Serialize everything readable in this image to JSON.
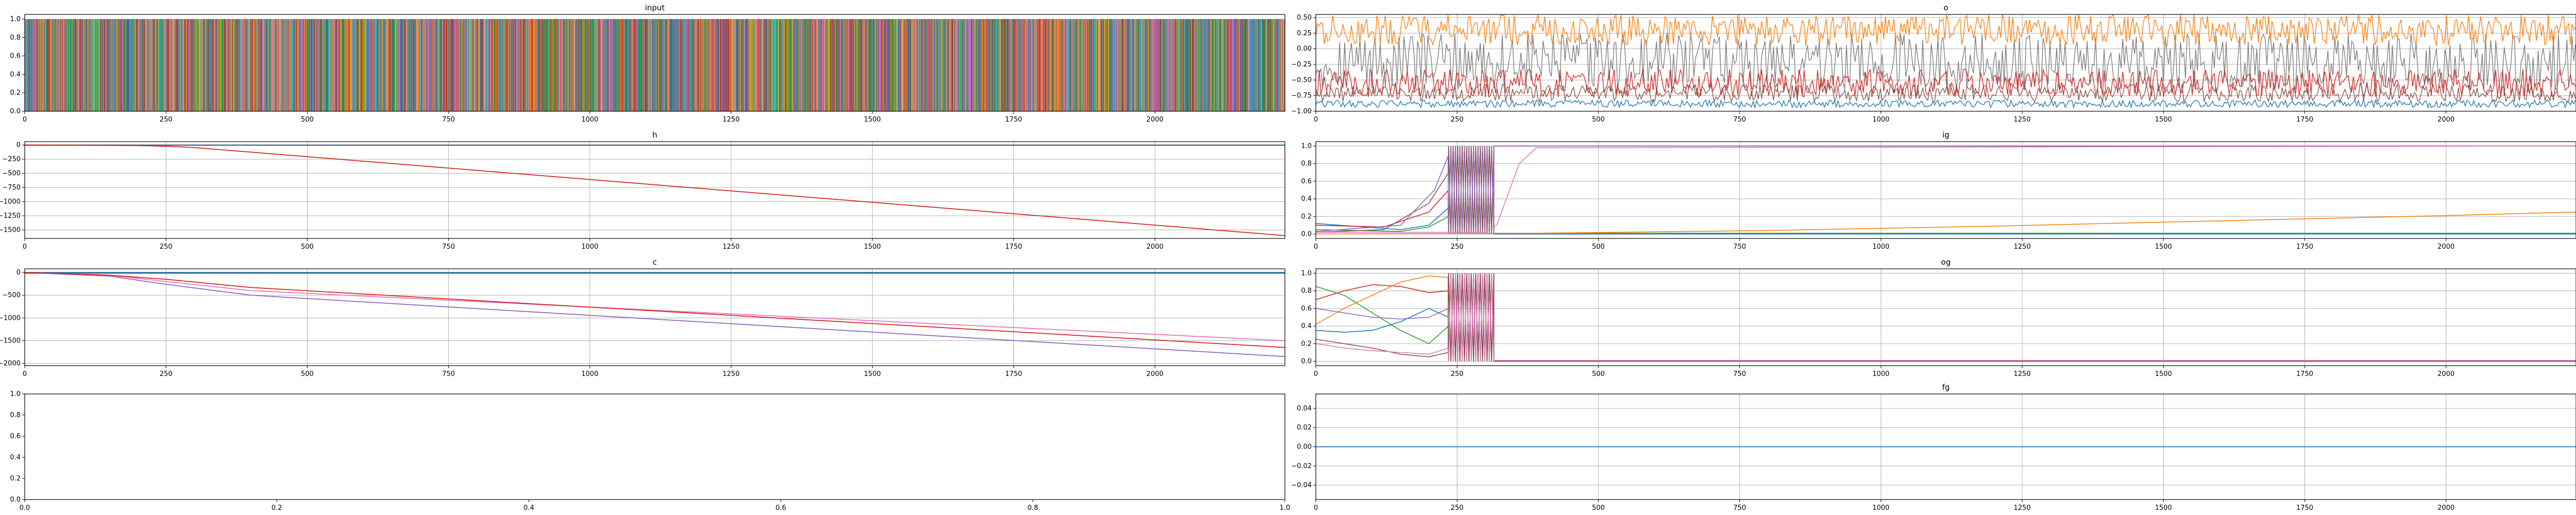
{
  "figure": {
    "background": "#ffffff"
  },
  "chart_data": [
    {
      "id": "input",
      "type": "line",
      "title": "input",
      "xlim": [
        0,
        2230
      ],
      "ylim": [
        0,
        1.05
      ],
      "xticks": [
        0,
        250,
        500,
        750,
        1000,
        1250,
        1500,
        1750,
        2000
      ],
      "yticks": [
        0.0,
        0.2,
        0.4,
        0.6,
        0.8,
        1.0
      ],
      "ytick_labels": [
        "0.0",
        "0.2",
        "0.4",
        "0.6",
        "0.8",
        "1.0"
      ],
      "grid": false,
      "render": "dense_bands",
      "n_points": 2230,
      "value_range": [
        0,
        1
      ],
      "palette": [
        "#1f77b4",
        "#ff7f0e",
        "#2ca02c",
        "#d62728",
        "#9467bd",
        "#8c564b",
        "#e377c2",
        "#7f7f7f",
        "#bcbd22",
        "#17becf"
      ]
    },
    {
      "id": "o",
      "type": "line",
      "title": "o",
      "xlim": [
        0,
        2230
      ],
      "ylim": [
        -1.0,
        0.55
      ],
      "xticks": [
        0,
        250,
        500,
        750,
        1000,
        1250,
        1500,
        1750,
        2000
      ],
      "yticks": [
        -1.0,
        -0.75,
        -0.5,
        -0.25,
        0.0,
        0.25,
        0.5
      ],
      "ytick_labels": [
        "−1.00",
        "−0.75",
        "−0.50",
        "−0.25",
        "0.00",
        "0.25",
        "0.50"
      ],
      "grid": true,
      "render": "noisy",
      "series": [
        {
          "color": "#7f7f7f",
          "center": -0.2,
          "amp": 0.9
        },
        {
          "color": "#ff7f0e",
          "center": 0.3,
          "amp": 0.5
        },
        {
          "color": "#d62728",
          "center": -0.55,
          "amp": 0.45
        },
        {
          "color": "#8c564b",
          "center": -0.7,
          "amp": 0.3
        },
        {
          "color": "#1f77b4",
          "center": -0.88,
          "amp": 0.12
        }
      ]
    },
    {
      "id": "h",
      "type": "line",
      "title": "h",
      "xlim": [
        0,
        2230
      ],
      "ylim": [
        -1650,
        60
      ],
      "xticks": [
        0,
        250,
        500,
        750,
        1000,
        1250,
        1500,
        1750,
        2000
      ],
      "yticks": [
        0,
        -250,
        -500,
        -750,
        -1000,
        -1250,
        -1500
      ],
      "ytick_labels": [
        "0",
        "−250",
        "−500",
        "−750",
        "−1000",
        "−1250",
        "−1500"
      ],
      "grid": true,
      "series": [
        {
          "color": "#7f7f7f",
          "x": [
            0,
            2230
          ],
          "y": [
            0,
            0
          ]
        },
        {
          "color": "#ff7f0e",
          "x": [
            0,
            2230
          ],
          "y": [
            -2,
            -2
          ]
        },
        {
          "color": "#2ca02c",
          "x": [
            0,
            2230
          ],
          "y": [
            -4,
            -4
          ]
        },
        {
          "color": "#8c564b",
          "x": [
            0,
            2230
          ],
          "y": [
            -1,
            -1
          ]
        },
        {
          "color": "#e377c2",
          "x": [
            0,
            2230
          ],
          "y": [
            -6,
            -6
          ]
        },
        {
          "color": "#1f77b4",
          "x": [
            0,
            2230
          ],
          "y": [
            -3,
            -3
          ]
        },
        {
          "color": "#d62728",
          "x": [
            0,
            200,
            260,
            300,
            2230
          ],
          "y": [
            0,
            -10,
            -25,
            -45,
            -1600
          ]
        }
      ]
    },
    {
      "id": "ig",
      "type": "line",
      "title": "ig",
      "xlim": [
        0,
        2230
      ],
      "ylim": [
        -0.05,
        1.05
      ],
      "xticks": [
        0,
        250,
        500,
        750,
        1000,
        1250,
        1500,
        1750,
        2000
      ],
      "yticks": [
        0.0,
        0.2,
        0.4,
        0.6,
        0.8,
        1.0
      ],
      "ytick_labels": [
        "0.0",
        "0.2",
        "0.4",
        "0.6",
        "0.8",
        "1.0"
      ],
      "grid": true,
      "render": "oscillate",
      "osc_range": [
        235,
        315
      ],
      "series": [
        {
          "color": "#1f77b4",
          "x": [
            0,
            150,
            200,
            235
          ],
          "y": [
            0.12,
            0.05,
            0.1,
            0.3
          ],
          "after": 0
        },
        {
          "color": "#2ca02c",
          "x": [
            0,
            150,
            200,
            235
          ],
          "y": [
            0.05,
            0.03,
            0.08,
            0.2
          ],
          "after": 0.01
        },
        {
          "color": "#d62728",
          "x": [
            0,
            120,
            200,
            235
          ],
          "y": [
            0.1,
            0.08,
            0.25,
            0.5
          ],
          "after": 1
        },
        {
          "color": "#8c564b",
          "x": [
            0,
            120,
            200,
            235
          ],
          "y": [
            0.02,
            0.05,
            0.35,
            0.7
          ],
          "after": 1
        },
        {
          "color": "#9467bd",
          "x": [
            0,
            150,
            210,
            235
          ],
          "y": [
            0.03,
            0.1,
            0.5,
            0.9
          ],
          "after": 1
        },
        {
          "color": "#e377c2",
          "x": [
            0,
            300,
            320,
            340,
            360,
            390,
            2230
          ],
          "y": [
            0.02,
            0.02,
            0.1,
            0.45,
            0.8,
            0.98,
            1.0
          ]
        },
        {
          "color": "#ff7f0e",
          "x": [
            0,
            400,
            800,
            1200,
            1600,
            2000,
            2230
          ],
          "y": [
            0.0,
            0.01,
            0.04,
            0.09,
            0.15,
            0.21,
            0.25
          ]
        }
      ]
    },
    {
      "id": "c",
      "type": "line",
      "title": "c",
      "xlim": [
        0,
        2230
      ],
      "ylim": [
        -2050,
        80
      ],
      "xticks": [
        0,
        250,
        500,
        750,
        1000,
        1250,
        1500,
        1750,
        2000
      ],
      "yticks": [
        0,
        -500,
        -1000,
        -1500,
        -2000
      ],
      "ytick_labels": [
        "0",
        "−500",
        "−1000",
        "−1500",
        "−2000"
      ],
      "grid": true,
      "series": [
        {
          "color": "#7f7f7f",
          "x": [
            0,
            2230
          ],
          "y": [
            0,
            0
          ]
        },
        {
          "color": "#ff7f0e",
          "x": [
            0,
            2230
          ],
          "y": [
            -20,
            -20
          ]
        },
        {
          "color": "#2ca02c",
          "x": [
            0,
            2230
          ],
          "y": [
            -5,
            -5
          ]
        },
        {
          "color": "#8c564b",
          "x": [
            0,
            2230
          ],
          "y": [
            -12,
            -12
          ]
        },
        {
          "color": "#1f77b4",
          "x": [
            0,
            2230
          ],
          "y": [
            -2,
            -2
          ]
        },
        {
          "color": "#e377c2",
          "x": [
            0,
            150,
            250,
            400,
            2230
          ],
          "y": [
            0,
            -60,
            -200,
            -400,
            -1500
          ]
        },
        {
          "color": "#9467bd",
          "x": [
            0,
            150,
            250,
            400,
            2230
          ],
          "y": [
            0,
            -80,
            -260,
            -500,
            -1850
          ]
        },
        {
          "color": "#d62728",
          "x": [
            0,
            150,
            250,
            400,
            2230
          ],
          "y": [
            0,
            -60,
            -150,
            -330,
            -1650
          ]
        }
      ]
    },
    {
      "id": "og",
      "type": "line",
      "title": "og",
      "xlim": [
        0,
        2230
      ],
      "ylim": [
        -0.05,
        1.05
      ],
      "xticks": [
        0,
        250,
        500,
        750,
        1000,
        1250,
        1500,
        1750,
        2000
      ],
      "yticks": [
        0.0,
        0.2,
        0.4,
        0.6,
        0.8,
        1.0
      ],
      "ytick_labels": [
        "0.0",
        "0.2",
        "0.4",
        "0.6",
        "0.8",
        "1.0"
      ],
      "grid": true,
      "render": "oscillate",
      "osc_range": [
        235,
        315
      ],
      "series": [
        {
          "color": "#2ca02c",
          "x": [
            0,
            50,
            100,
            150,
            200,
            235
          ],
          "y": [
            0.85,
            0.75,
            0.55,
            0.35,
            0.2,
            0.4
          ],
          "after": 0
        },
        {
          "color": "#d62728",
          "x": [
            0,
            50,
            100,
            150,
            200,
            235
          ],
          "y": [
            0.7,
            0.8,
            0.87,
            0.85,
            0.78,
            0.8
          ],
          "after": 0
        },
        {
          "color": "#ff7f0e",
          "x": [
            0,
            50,
            100,
            150,
            200,
            235
          ],
          "y": [
            0.42,
            0.6,
            0.75,
            0.9,
            0.97,
            0.95
          ],
          "after": 0
        },
        {
          "color": "#1f77b4",
          "x": [
            0,
            50,
            100,
            150,
            200,
            235
          ],
          "y": [
            0.35,
            0.33,
            0.35,
            0.45,
            0.6,
            0.5
          ],
          "after": 0
        },
        {
          "color": "#9467bd",
          "x": [
            0,
            50,
            100,
            150,
            200,
            235
          ],
          "y": [
            0.6,
            0.55,
            0.5,
            0.48,
            0.5,
            0.6
          ],
          "after": 0.01
        },
        {
          "color": "#8c564b",
          "x": [
            0,
            50,
            100,
            150,
            200,
            235
          ],
          "y": [
            0.25,
            0.2,
            0.15,
            0.08,
            0.05,
            0.1
          ],
          "after": 0
        },
        {
          "color": "#e377c2",
          "x": [
            0,
            50,
            100,
            150,
            200,
            235
          ],
          "y": [
            0.2,
            0.15,
            0.12,
            0.1,
            0.08,
            0.15
          ],
          "after": 0.01
        }
      ]
    },
    {
      "id": "empty",
      "type": "line",
      "title": "",
      "xlim": [
        0,
        1
      ],
      "ylim": [
        0,
        1
      ],
      "xticks": [
        0,
        0.2,
        0.4,
        0.6,
        0.8,
        1.0
      ],
      "xtick_labels": [
        "0.0",
        "0.2",
        "0.4",
        "0.6",
        "0.8",
        "1.0"
      ],
      "yticks": [
        0,
        0.2,
        0.4,
        0.6,
        0.8,
        1.0
      ],
      "ytick_labels": [
        "0.0",
        "0.2",
        "0.4",
        "0.6",
        "0.8",
        "1.0"
      ],
      "grid": false,
      "series": []
    },
    {
      "id": "fg",
      "type": "line",
      "title": "fg",
      "xlim": [
        0,
        2230
      ],
      "ylim": [
        -0.055,
        0.055
      ],
      "xticks": [
        0,
        250,
        500,
        750,
        1000,
        1250,
        1500,
        1750,
        2000
      ],
      "yticks": [
        -0.04,
        -0.02,
        0.0,
        0.02,
        0.04
      ],
      "ytick_labels": [
        "−0.04",
        "−0.02",
        "0.00",
        "0.02",
        "0.04"
      ],
      "grid": true,
      "series": [
        {
          "color": "#1f77b4",
          "x": [
            0,
            2230
          ],
          "y": [
            0,
            0
          ]
        }
      ]
    }
  ]
}
